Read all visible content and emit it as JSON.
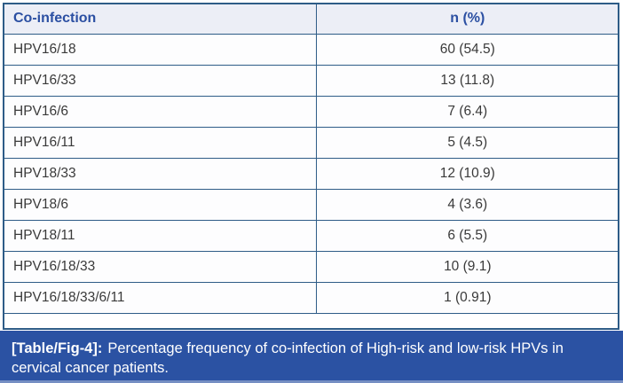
{
  "table": {
    "columns": {
      "co_infection": "Co-infection",
      "n_pct": "n (%)"
    },
    "rows": [
      {
        "co": "HPV16/18",
        "n": "60 (54.5)"
      },
      {
        "co": "HPV16/33",
        "n": "13 (11.8)"
      },
      {
        "co": "HPV16/6",
        "n": "7 (6.4)"
      },
      {
        "co": "HPV16/11",
        "n": "5 (4.5)"
      },
      {
        "co": "HPV18/33",
        "n": "12 (10.9)"
      },
      {
        "co": "HPV18/6",
        "n": "4 (3.6)"
      },
      {
        "co": "HPV18/11",
        "n": "6 (5.5)"
      },
      {
        "co": "HPV16/18/33",
        "n": "10 (9.1)"
      },
      {
        "co": "HPV16/18/33/6/11",
        "n": "1 (0.91)"
      }
    ]
  },
  "caption": {
    "label": "[Table/Fig-4]:",
    "text": "Percentage frequency of co-infection of High-risk and low-risk HPVs in cervical cancer patients."
  },
  "colors": {
    "border": "#2e5c87",
    "header_bg": "#eceef6",
    "header_text": "#2b4fa2",
    "body_text": "#3a3a3a",
    "caption_bg": "#2b52a3",
    "caption_text": "#ffffff"
  }
}
